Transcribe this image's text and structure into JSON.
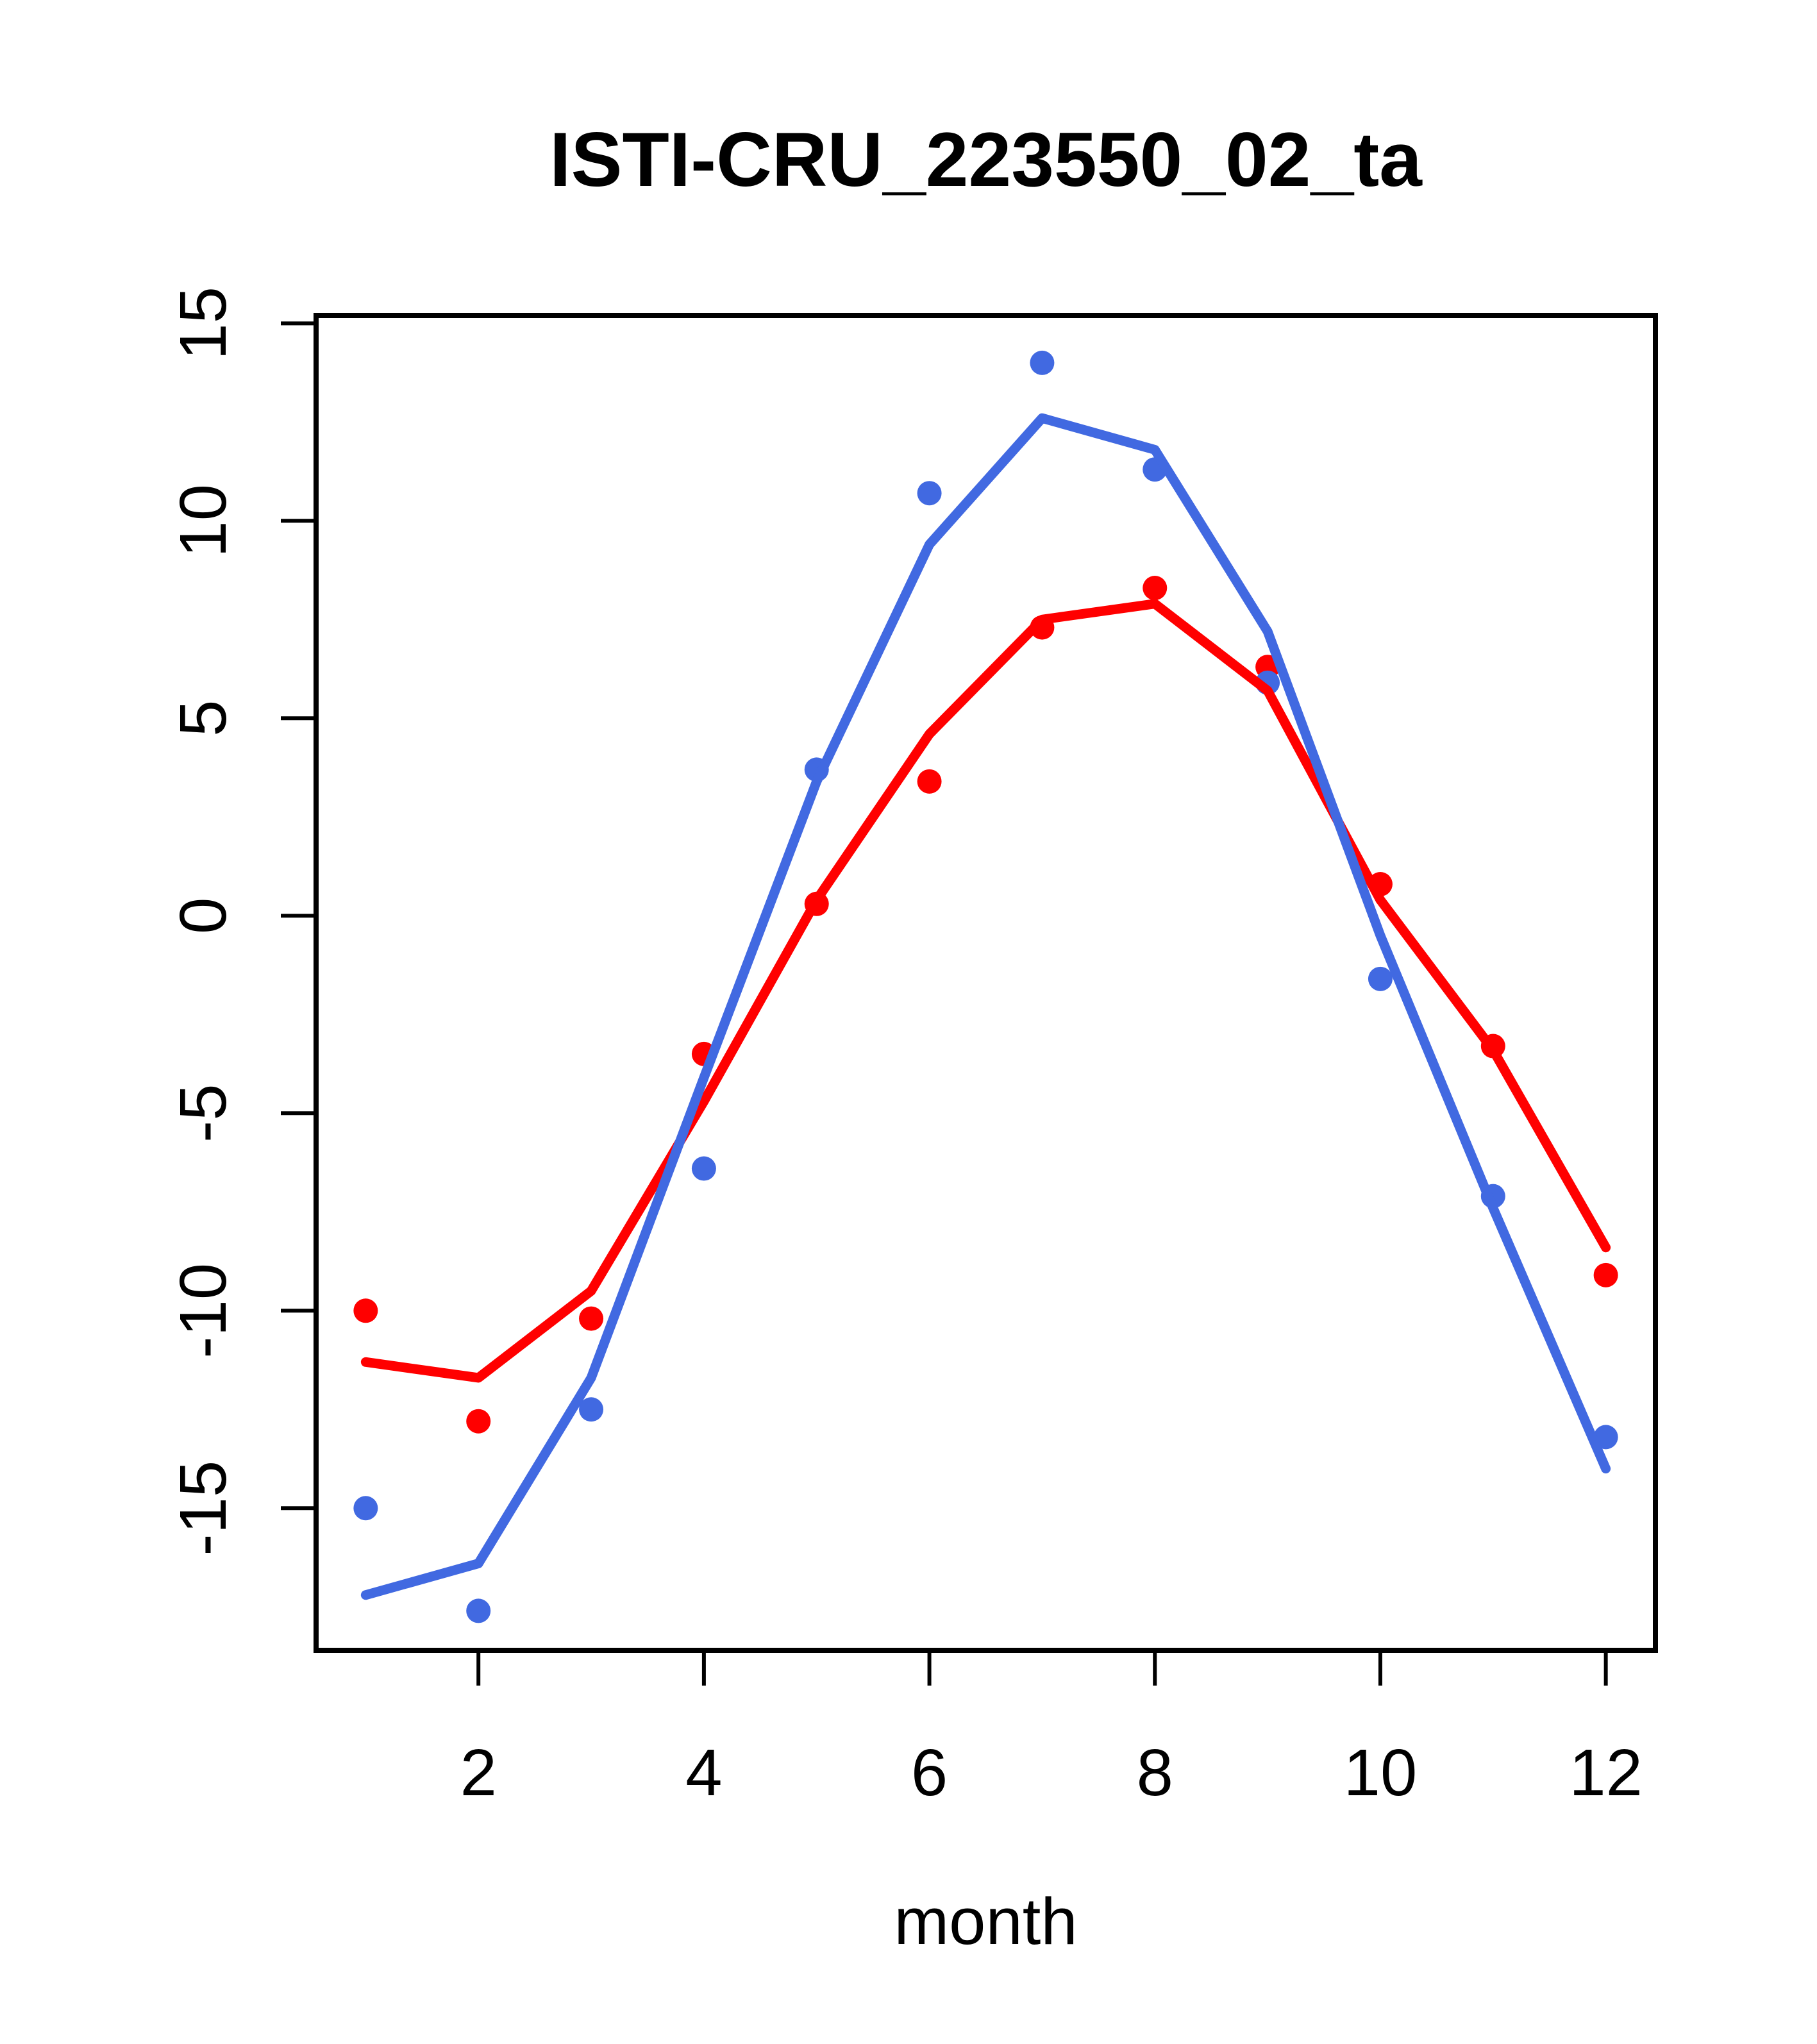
{
  "page": {
    "background": "#FFFFFF",
    "foreground": "#000000"
  },
  "chart_data": {
    "type": "scatter",
    "title": "ISTI-CRU_223550_02_ta",
    "xlabel": "month",
    "ylabel": "",
    "x": [
      1,
      2,
      3,
      4,
      5,
      6,
      7,
      8,
      9,
      10,
      11,
      12
    ],
    "x_ticks": [
      2,
      4,
      6,
      8,
      10,
      12
    ],
    "y_ticks": [
      -15,
      -10,
      -5,
      0,
      5,
      10,
      15
    ],
    "xlim": [
      0.56,
      12.44
    ],
    "ylim": [
      -18.6,
      15.2
    ],
    "grid": false,
    "legend": "none",
    "colors": {
      "blue": "#4169E1",
      "red": "#FF0000",
      "axis": "#000000"
    },
    "series": [
      {
        "name": "red-points",
        "style": "points",
        "color": "#FF0000",
        "values": [
          -10.0,
          -12.8,
          -10.2,
          -3.5,
          0.3,
          3.4,
          7.3,
          8.3,
          6.3,
          0.8,
          -3.3,
          -9.1
        ]
      },
      {
        "name": "blue-points",
        "style": "points",
        "color": "#4169E1",
        "values": [
          -15.0,
          -17.6,
          -12.5,
          -6.4,
          3.7,
          10.7,
          14.0,
          11.3,
          5.9,
          -1.6,
          -7.1,
          -13.2
        ]
      },
      {
        "name": "red-smooth-line",
        "style": "line",
        "color": "#FF0000",
        "values": [
          -11.3,
          -11.7,
          -9.5,
          -4.7,
          0.4,
          4.6,
          7.5,
          7.9,
          5.7,
          0.4,
          -3.4,
          -8.4
        ]
      },
      {
        "name": "blue-smooth-line",
        "style": "line",
        "color": "#4169E1",
        "values": [
          -17.2,
          -16.4,
          -11.7,
          -4.1,
          3.4,
          9.4,
          12.6,
          11.8,
          7.2,
          -0.5,
          -7.4,
          -14.0
        ]
      }
    ]
  }
}
